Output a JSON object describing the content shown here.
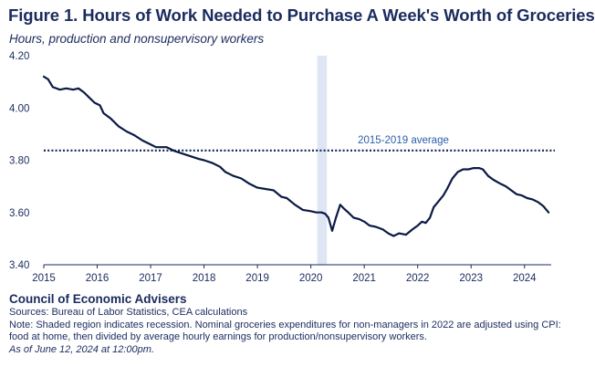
{
  "chart_data": {
    "type": "line",
    "title": "Figure 1. Hours of Work Needed to Purchase A Week's Worth of Groceries",
    "subtitle": "Hours, production and nonsupervisory workers",
    "xlabel": "",
    "ylabel": "",
    "xlim": [
      2015.0,
      2024.5
    ],
    "ylim": [
      3.4,
      4.2
    ],
    "x_ticks": [
      2015,
      2016,
      2017,
      2018,
      2019,
      2020,
      2021,
      2022,
      2023,
      2024
    ],
    "y_ticks": [
      "4.20",
      "4.00",
      "3.80",
      "3.60",
      "3.40"
    ],
    "y_tick_values": [
      4.2,
      4.0,
      3.8,
      3.6,
      3.4
    ],
    "grid": false,
    "recession": {
      "start": 2020.12,
      "end": 2020.3
    },
    "reference_line": {
      "value": 3.837,
      "label": "2015-2019 average",
      "color": "#1a2b5e"
    },
    "series": [
      {
        "color": "#0b1a45",
        "points": [
          [
            2015.0,
            4.12
          ],
          [
            2015.08,
            4.11
          ],
          [
            2015.17,
            4.08
          ],
          [
            2015.3,
            4.07
          ],
          [
            2015.42,
            4.075
          ],
          [
            2015.55,
            4.07
          ],
          [
            2015.65,
            4.075
          ],
          [
            2015.75,
            4.06
          ],
          [
            2015.85,
            4.04
          ],
          [
            2015.95,
            4.02
          ],
          [
            2016.05,
            4.01
          ],
          [
            2016.12,
            3.98
          ],
          [
            2016.25,
            3.96
          ],
          [
            2016.4,
            3.93
          ],
          [
            2016.55,
            3.91
          ],
          [
            2016.7,
            3.895
          ],
          [
            2016.85,
            3.875
          ],
          [
            2017.0,
            3.86
          ],
          [
            2017.1,
            3.85
          ],
          [
            2017.2,
            3.85
          ],
          [
            2017.3,
            3.85
          ],
          [
            2017.45,
            3.835
          ],
          [
            2017.6,
            3.825
          ],
          [
            2017.75,
            3.815
          ],
          [
            2017.9,
            3.805
          ],
          [
            2018.0,
            3.8
          ],
          [
            2018.15,
            3.79
          ],
          [
            2018.3,
            3.775
          ],
          [
            2018.4,
            3.755
          ],
          [
            2018.55,
            3.74
          ],
          [
            2018.7,
            3.73
          ],
          [
            2018.85,
            3.71
          ],
          [
            2019.0,
            3.695
          ],
          [
            2019.15,
            3.69
          ],
          [
            2019.3,
            3.685
          ],
          [
            2019.45,
            3.66
          ],
          [
            2019.55,
            3.655
          ],
          [
            2019.7,
            3.63
          ],
          [
            2019.85,
            3.61
          ],
          [
            2020.0,
            3.605
          ],
          [
            2020.1,
            3.6
          ],
          [
            2020.2,
            3.6
          ],
          [
            2020.27,
            3.595
          ],
          [
            2020.33,
            3.58
          ],
          [
            2020.4,
            3.53
          ],
          [
            2020.47,
            3.58
          ],
          [
            2020.55,
            3.63
          ],
          [
            2020.62,
            3.615
          ],
          [
            2020.7,
            3.6
          ],
          [
            2020.8,
            3.58
          ],
          [
            2020.9,
            3.575
          ],
          [
            2021.0,
            3.565
          ],
          [
            2021.1,
            3.55
          ],
          [
            2021.22,
            3.545
          ],
          [
            2021.35,
            3.535
          ],
          [
            2021.45,
            3.52
          ],
          [
            2021.55,
            3.51
          ],
          [
            2021.65,
            3.52
          ],
          [
            2021.78,
            3.515
          ],
          [
            2021.9,
            3.535
          ],
          [
            2022.0,
            3.55
          ],
          [
            2022.08,
            3.565
          ],
          [
            2022.15,
            3.56
          ],
          [
            2022.23,
            3.58
          ],
          [
            2022.3,
            3.62
          ],
          [
            2022.38,
            3.64
          ],
          [
            2022.48,
            3.665
          ],
          [
            2022.55,
            3.69
          ],
          [
            2022.65,
            3.73
          ],
          [
            2022.75,
            3.755
          ],
          [
            2022.85,
            3.765
          ],
          [
            2022.95,
            3.765
          ],
          [
            2023.05,
            3.77
          ],
          [
            2023.15,
            3.77
          ],
          [
            2023.22,
            3.765
          ],
          [
            2023.32,
            3.74
          ],
          [
            2023.42,
            3.725
          ],
          [
            2023.55,
            3.71
          ],
          [
            2023.65,
            3.7
          ],
          [
            2023.75,
            3.685
          ],
          [
            2023.85,
            3.67
          ],
          [
            2023.95,
            3.665
          ],
          [
            2024.05,
            3.655
          ],
          [
            2024.15,
            3.65
          ],
          [
            2024.25,
            3.64
          ],
          [
            2024.35,
            3.625
          ],
          [
            2024.45,
            3.6
          ]
        ]
      }
    ]
  },
  "footer": {
    "org": "Council of Economic Advisers",
    "sources": "Sources: Bureau of Labor Statistics, CEA calculations",
    "note_line1": "Note: Shaded region indicates recession. Nominal groceries expenditures for non-managers in 2022 are adjusted using CPI:",
    "note_line2": "food at home, then divided by average hourly earnings for production/nonsupervisory workers.",
    "asof": "As of June 12, 2024 at 12:00pm."
  },
  "colors": {
    "text": "#1a2b5e",
    "recession": "#dfe6f3",
    "line": "#0b1a45",
    "annotation": "#2b5fa8"
  }
}
